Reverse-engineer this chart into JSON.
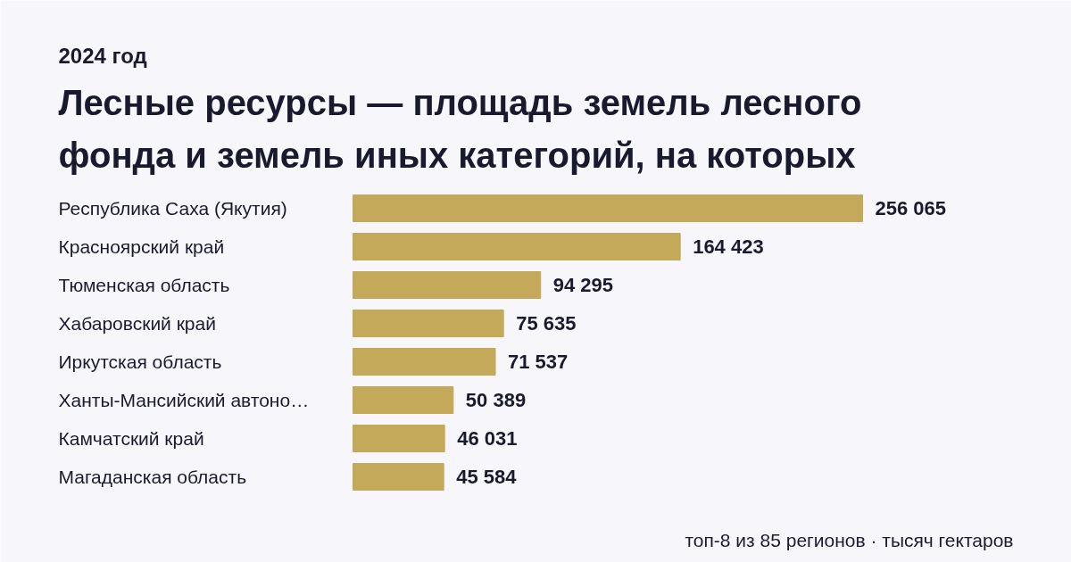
{
  "chart_data": {
    "type": "bar",
    "orientation": "horizontal",
    "title": "Лесные ресурсы — площадь земель лесного\nфонда и земель иных категорий, на которых",
    "subtitle": "2024 год",
    "categories": [
      "Республика Саха (Якутия)",
      "Красноярский край",
      "Тюменская область",
      "Хабаровский край",
      "Иркутская область",
      "Ханты-Мансийский автоно…",
      "Камчатский край",
      "Магаданская область"
    ],
    "values": [
      256065,
      164423,
      94295,
      75635,
      71537,
      50389,
      46031,
      45584
    ],
    "value_labels": [
      "256 065",
      "164 423",
      "94 295",
      "75 635",
      "71 537",
      "50 389",
      "46 031",
      "45 584"
    ],
    "color": "#c5a95a",
    "grid": false,
    "annotations": [
      "топ-8 из 85 регионов · тысяч гектаров"
    ]
  }
}
